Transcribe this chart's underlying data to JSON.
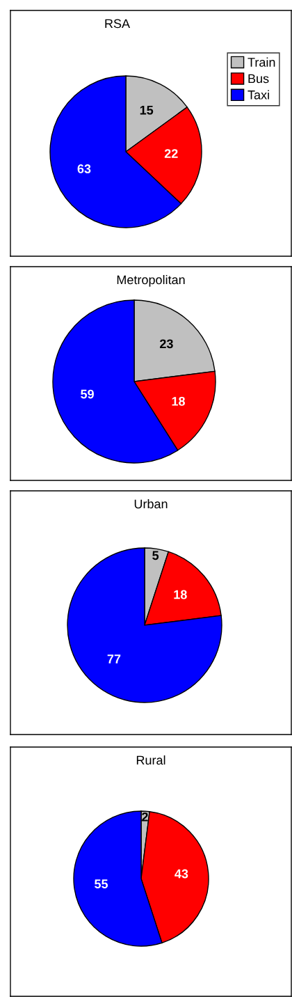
{
  "chart_data": [
    {
      "type": "pie",
      "title": "RSA",
      "categories": [
        "Train",
        "Bus",
        "Taxi"
      ],
      "values": [
        15,
        22,
        63
      ],
      "colors": [
        "#c0c0c0",
        "#ff0000",
        "#0000ff"
      ],
      "data_labels": true,
      "legend": "right"
    },
    {
      "type": "pie",
      "title": "Metropolitan",
      "categories": [
        null,
        null,
        null
      ],
      "values": [
        23,
        18,
        59
      ],
      "colors": [
        "#c0c0c0",
        "#ff0000",
        "#0000ff"
      ],
      "data_labels": true
    },
    {
      "type": "pie",
      "title": "Urban",
      "categories": [
        null,
        null,
        null
      ],
      "values": [
        5,
        18,
        77
      ],
      "colors": [
        "#c0c0c0",
        "#ff0000",
        "#0000ff"
      ],
      "data_labels": true
    },
    {
      "type": "pie",
      "title": "Rural",
      "categories": [
        null,
        null,
        null
      ],
      "values": [
        2,
        43,
        55
      ],
      "colors": [
        "#c0c0c0",
        "#ff0000",
        "#0000ff"
      ],
      "data_labels": true
    }
  ]
}
